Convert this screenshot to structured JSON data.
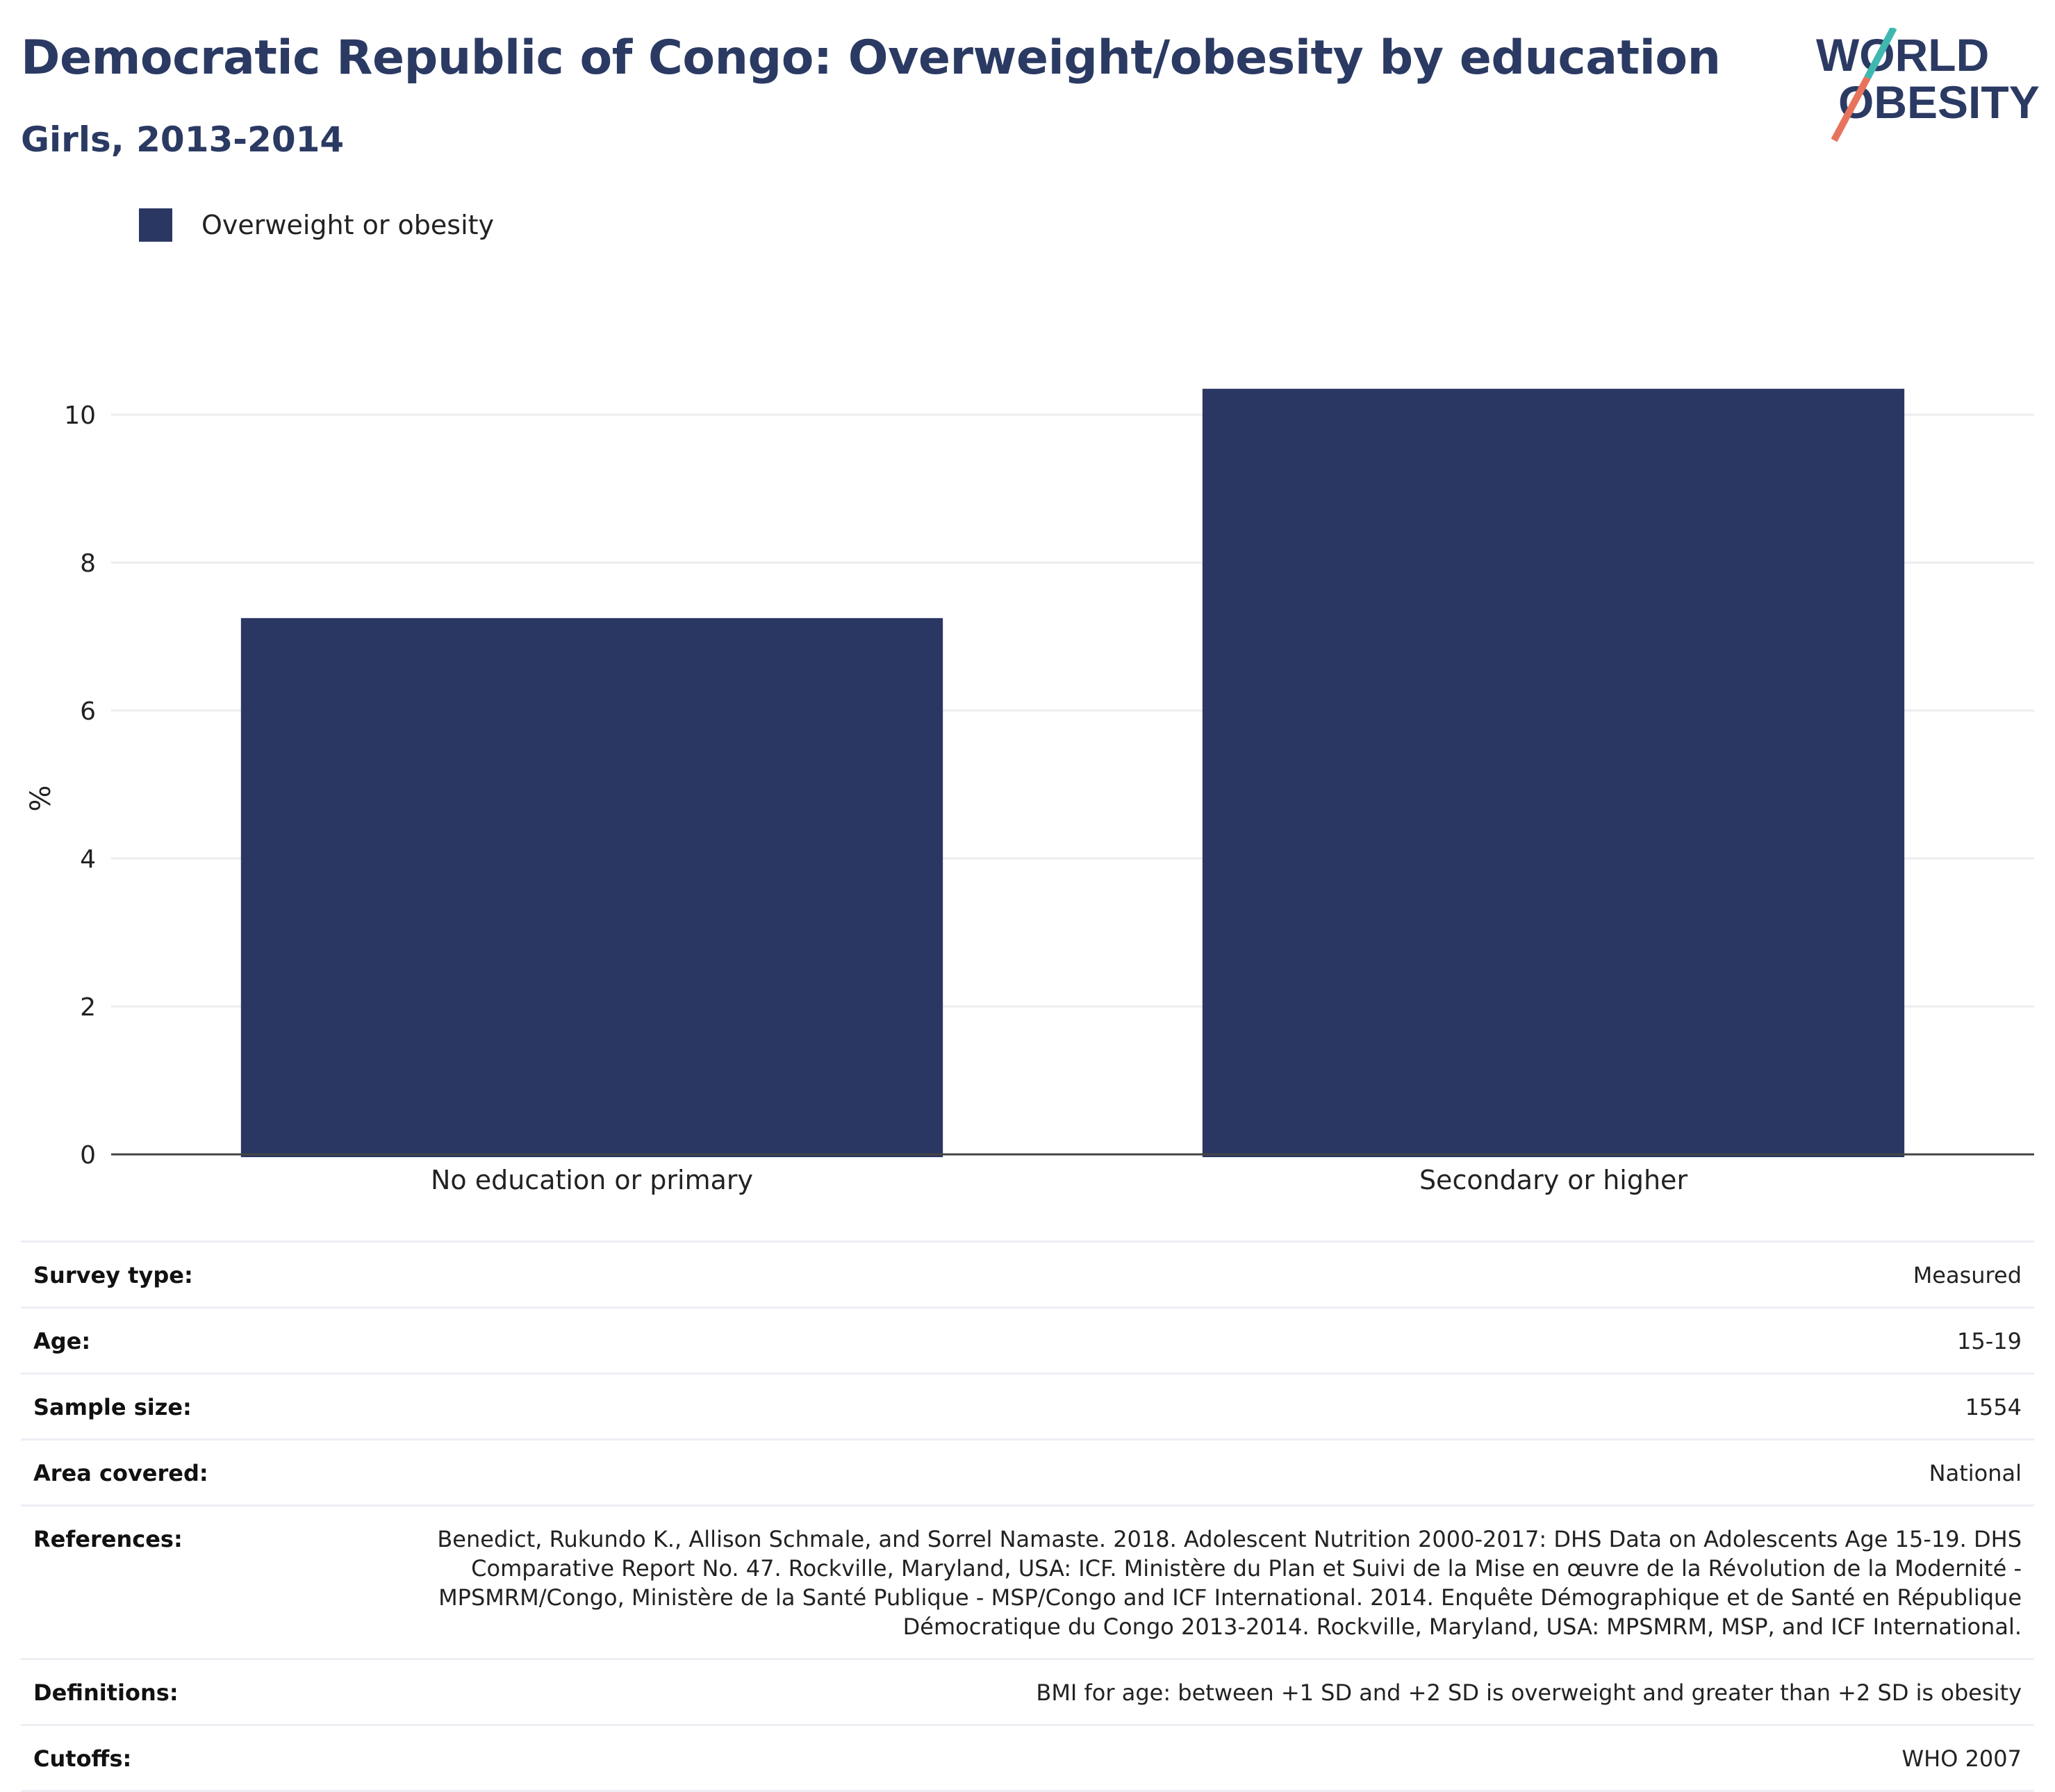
{
  "header": {
    "title": "Democratic Republic of Congo: Overweight/obesity by education",
    "subtitle": "Girls, 2013-2014"
  },
  "logo": {
    "line1": "WORLD",
    "line2": "OBESITY",
    "colors": {
      "text": "#2b3a63",
      "slash_teal": "#3fb8b0",
      "slash_coral": "#e8735c"
    }
  },
  "legend": {
    "items": [
      {
        "label": "Overweight or obesity",
        "color": "#2b3763"
      }
    ]
  },
  "chart_data": {
    "type": "bar",
    "title": "",
    "xlabel": "",
    "ylabel": "%",
    "categories": [
      "No education or primary",
      "Secondary or higher"
    ],
    "series": [
      {
        "name": "Overweight or obesity",
        "values": [
          7.25,
          10.35
        ],
        "color": "#2b3763"
      }
    ],
    "ylim": [
      0,
      10.5
    ],
    "yticks": [
      0,
      2,
      4,
      6,
      8,
      10
    ],
    "grid": true,
    "legend_position": "top-left"
  },
  "info": {
    "rows": [
      {
        "label": "Survey type:",
        "value": "Measured"
      },
      {
        "label": "Age:",
        "value": "15-19"
      },
      {
        "label": "Sample size:",
        "value": "1554"
      },
      {
        "label": "Area covered:",
        "value": "National"
      },
      {
        "label": "References:",
        "value": "Benedict, Rukundo K., Allison Schmale, and Sorrel Namaste. 2018. Adolescent Nutrition 2000-2017: DHS Data on Adolescents Age 15-19. DHS Comparative Report No. 47. Rockville, Maryland, USA: ICF. Ministère du Plan et Suivi de la Mise en œuvre de la Révolution de la Modernité - MPSMRM/Congo, Ministère de la Santé Publique - MSP/Congo and ICF International. 2014. Enquête Démographique et de Santé en République Démocratique du Congo 2013-2014. Rockville, Maryland, USA: MPSMRM, MSP, and ICF International."
      },
      {
        "label": "Definitions:",
        "value": "BMI for age: between +1 SD and +2 SD is overweight and greater than +2 SD is obesity"
      },
      {
        "label": "Cutoffs:",
        "value": "WHO 2007"
      }
    ]
  }
}
